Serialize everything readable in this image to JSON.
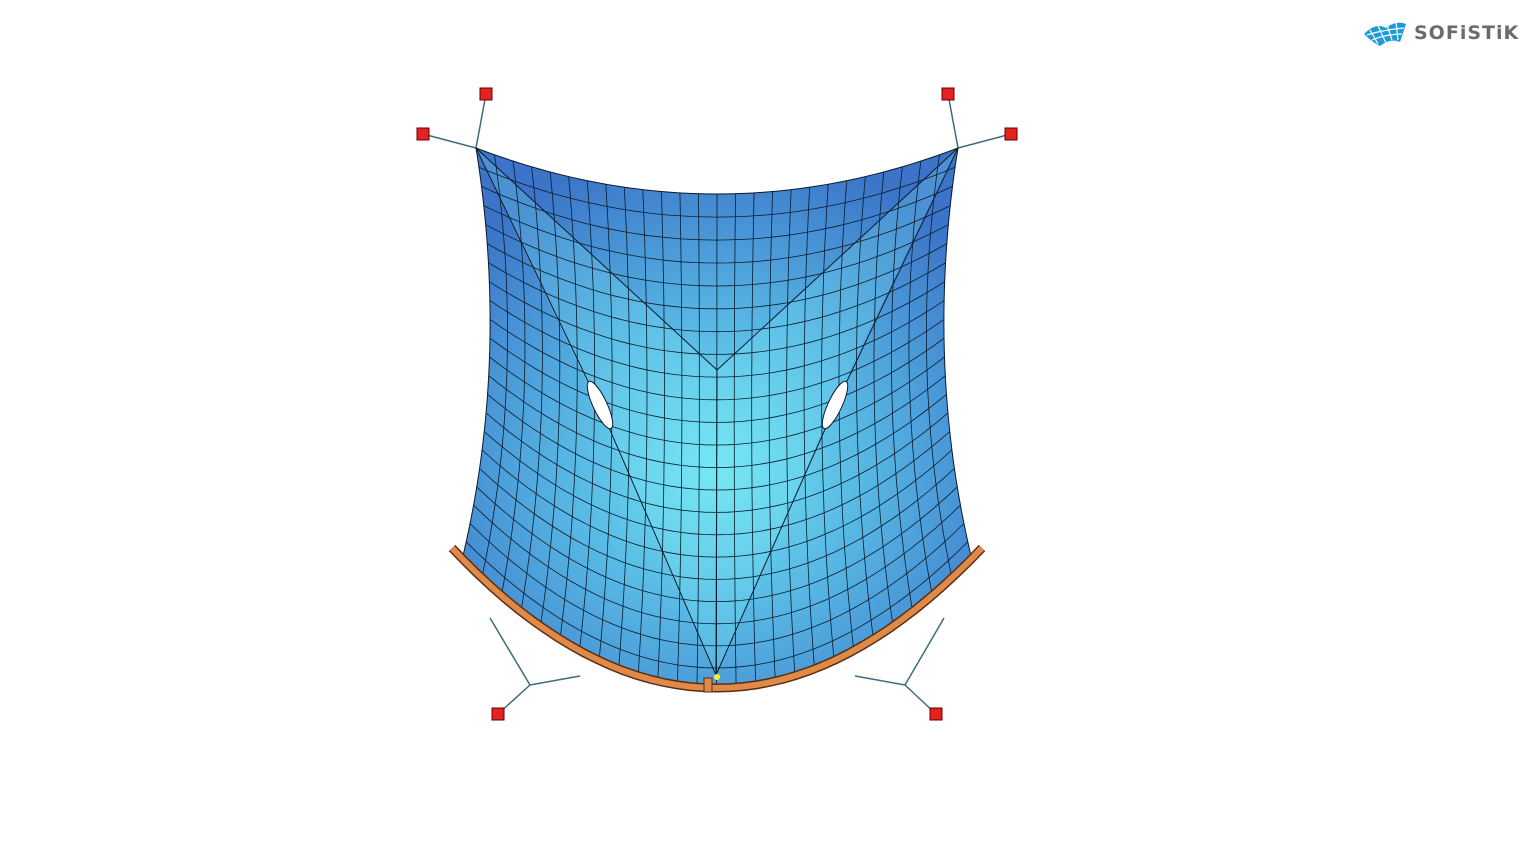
{
  "logo": {
    "text": "SOFiSTiK",
    "icon": "membrane-grid-logo-icon",
    "color": "#1e9ad6"
  },
  "model": {
    "type": "membrane-structure-fe-mesh",
    "colors": {
      "membrane_dark": "#3a73c8",
      "membrane_light": "#72e6f2",
      "mesh_lines": "#0b1a2a",
      "edge_beam": "#e08a4a",
      "cables": "#3b6f78",
      "supports": "#e42222"
    }
  }
}
